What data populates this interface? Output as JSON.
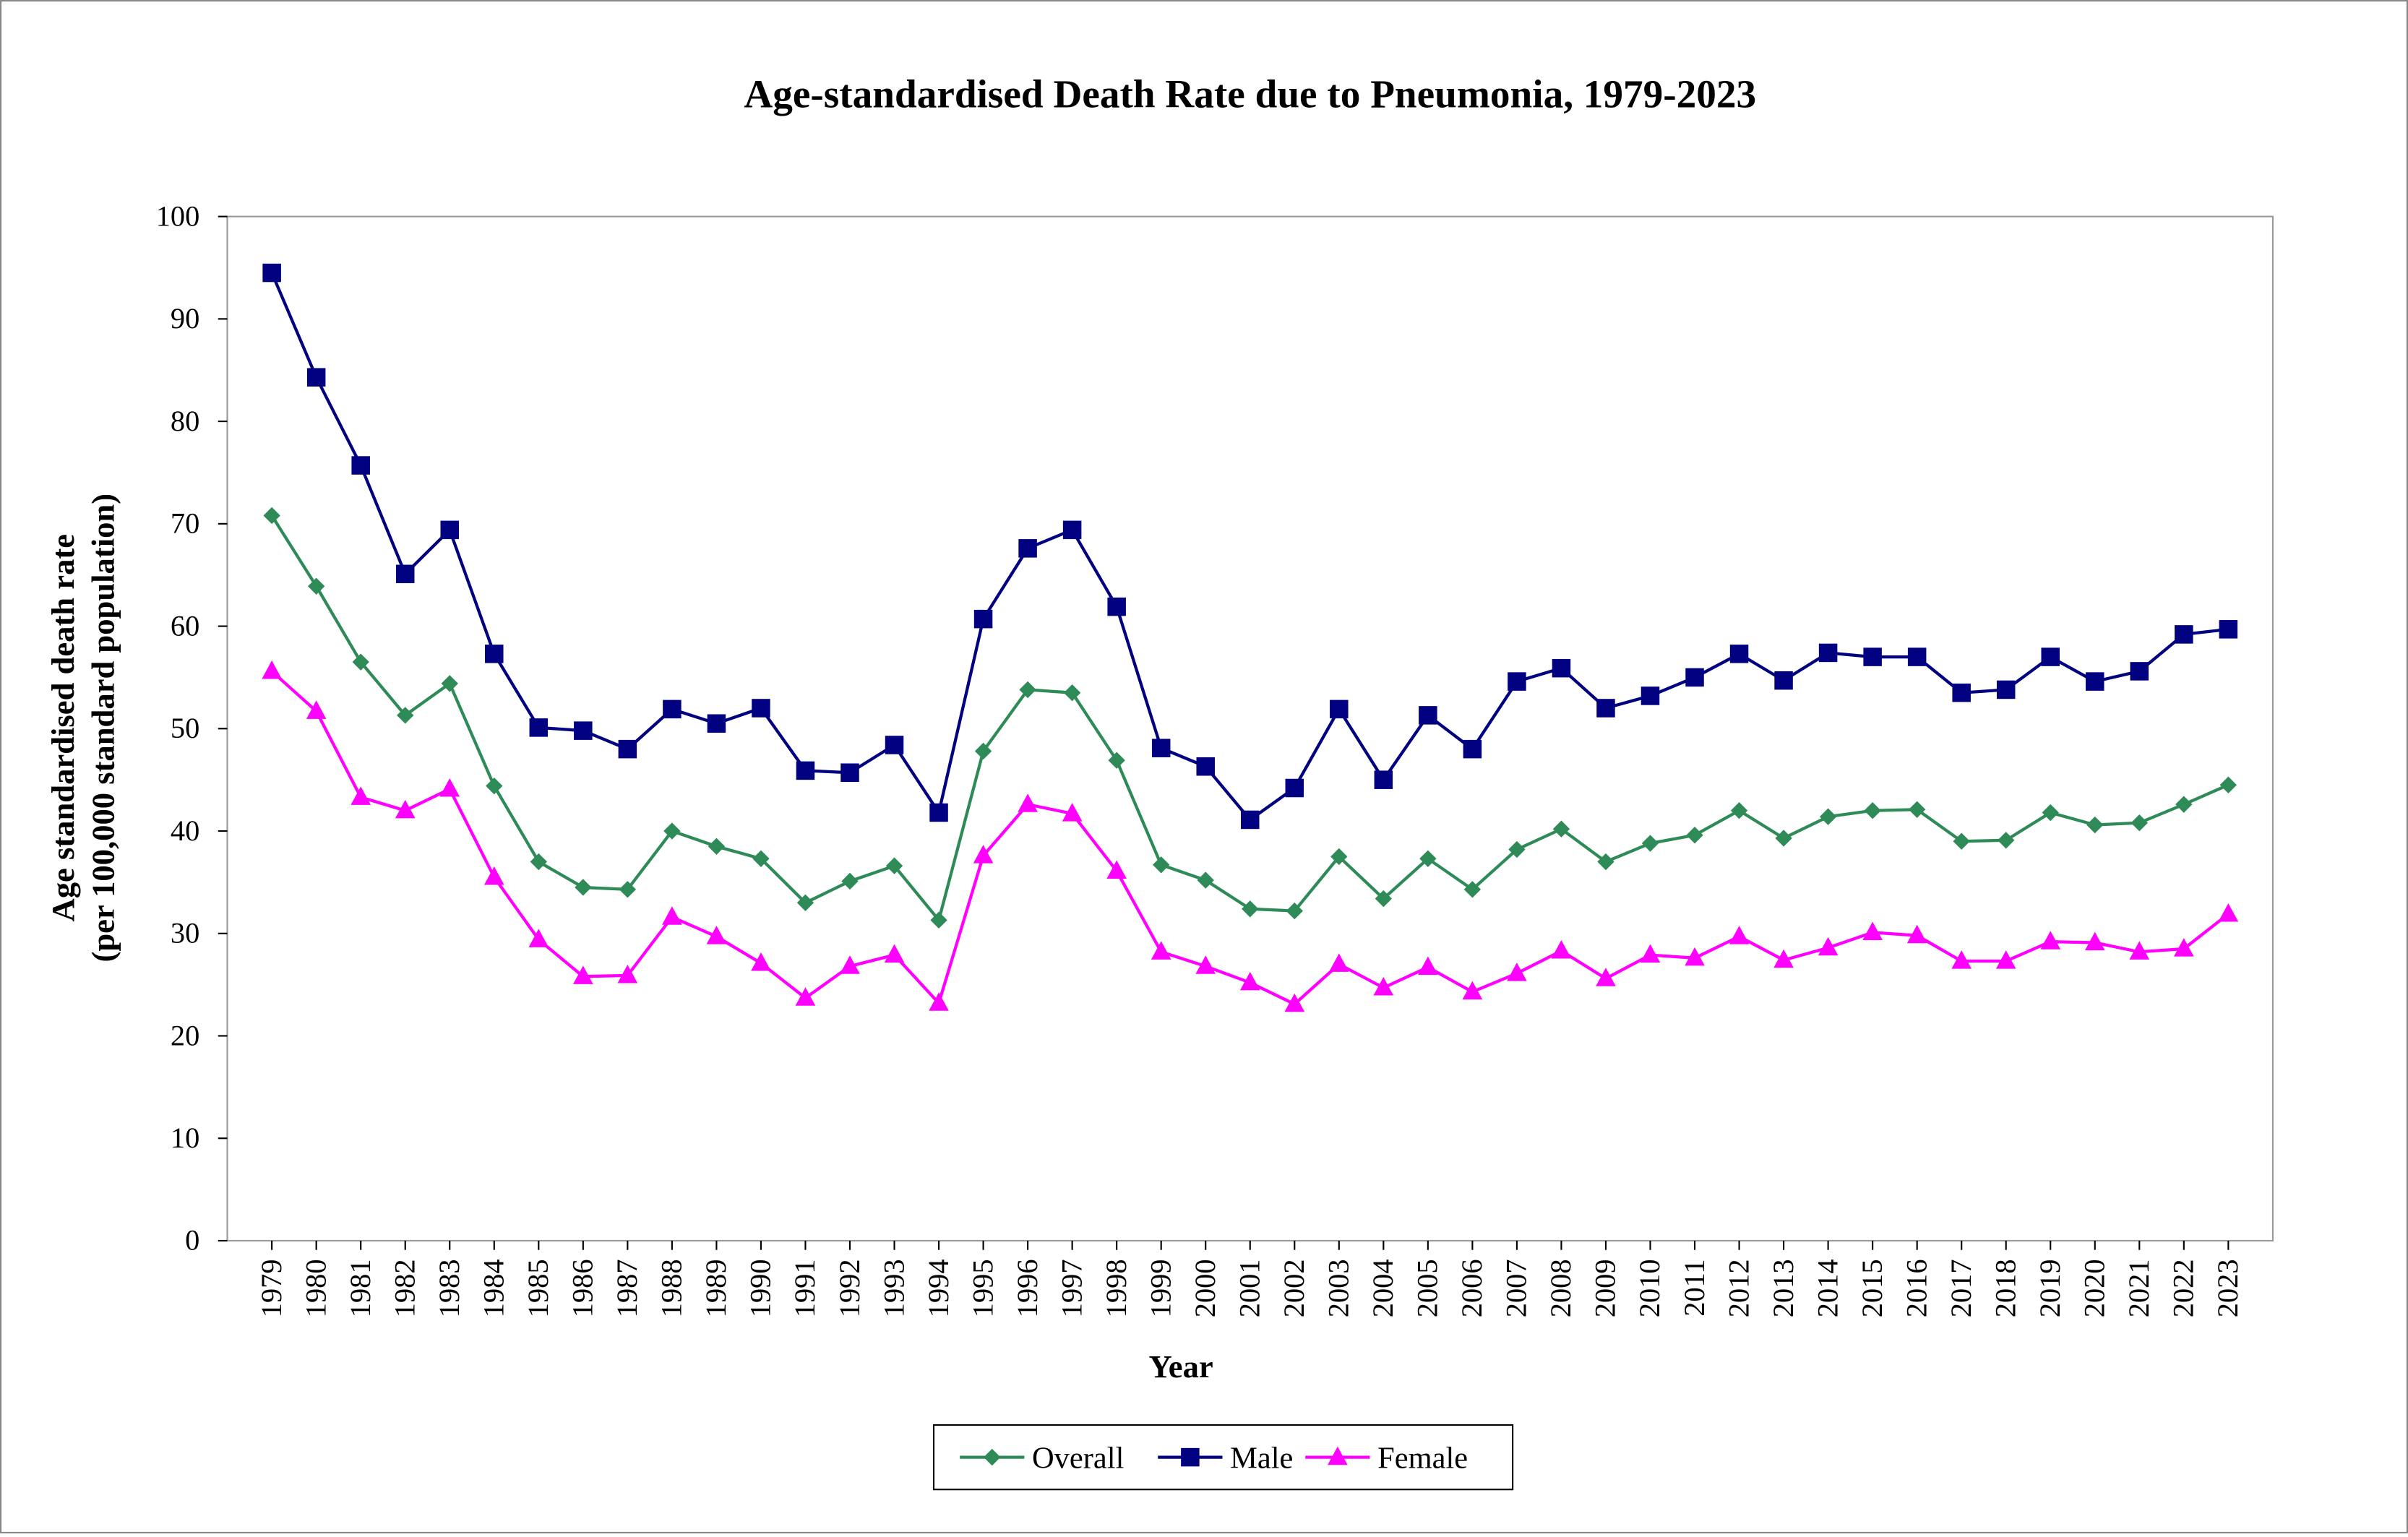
{
  "chart_data": {
    "type": "line",
    "title": "Age-standardised Death Rate due to Pneumonia, 1979-2023",
    "xlabel": "Year",
    "ylabel": [
      "Age standardised death rate",
      "(per 100,000 standard population)"
    ],
    "ylim": [
      0,
      100
    ],
    "yticks": [
      0,
      10,
      20,
      30,
      40,
      50,
      60,
      70,
      80,
      90,
      100
    ],
    "grid": false,
    "legend_position": "bottom",
    "x": [
      "1979",
      "1980",
      "1981",
      "1982",
      "1983",
      "1984",
      "1985",
      "1986",
      "1987",
      "1988",
      "1989",
      "1990",
      "1991",
      "1992",
      "1993",
      "1994",
      "1995",
      "1996",
      "1997",
      "1998",
      "1999",
      "2000",
      "2001",
      "2002",
      "2003",
      "2004",
      "2005",
      "2006",
      "2007",
      "2008",
      "2009",
      "2010",
      "2011",
      "2012",
      "2013",
      "2014",
      "2015",
      "2016",
      "2017",
      "2018",
      "2019",
      "2020",
      "2021",
      "2022",
      "2023"
    ],
    "series": [
      {
        "name": "Overall",
        "color": "#2E8B57",
        "marker": "diamond",
        "values": [
          70.8,
          63.9,
          56.5,
          51.3,
          54.4,
          44.4,
          37.0,
          34.5,
          34.3,
          40.0,
          38.5,
          37.3,
          33.0,
          35.1,
          36.6,
          31.3,
          47.8,
          53.8,
          53.5,
          46.9,
          36.7,
          35.2,
          32.4,
          32.2,
          37.5,
          33.4,
          37.3,
          34.3,
          38.2,
          40.2,
          37.0,
          38.8,
          39.6,
          42.0,
          39.3,
          41.4,
          42.0,
          42.1,
          39.0,
          39.1,
          41.8,
          40.6,
          40.8,
          42.6,
          44.5
        ]
      },
      {
        "name": "Male",
        "color": "#000080",
        "marker": "square",
        "values": [
          94.5,
          84.3,
          75.7,
          65.1,
          69.4,
          57.3,
          50.1,
          49.8,
          48.0,
          51.9,
          50.5,
          52.0,
          45.9,
          45.7,
          48.4,
          41.8,
          60.7,
          67.6,
          69.4,
          61.9,
          48.1,
          46.3,
          41.1,
          44.2,
          51.9,
          45.0,
          51.3,
          48.0,
          54.6,
          55.9,
          52.0,
          53.2,
          55.0,
          57.3,
          54.7,
          57.4,
          57.0,
          57.0,
          53.5,
          53.8,
          57.0,
          54.6,
          55.6,
          59.2,
          59.7
        ]
      },
      {
        "name": "Female",
        "color": "#FF00FF",
        "marker": "triangle",
        "values": [
          55.6,
          51.7,
          43.3,
          42.0,
          44.1,
          35.5,
          29.4,
          25.8,
          25.9,
          31.6,
          29.7,
          27.1,
          23.7,
          26.8,
          27.9,
          23.2,
          37.6,
          42.6,
          41.7,
          36.1,
          28.2,
          26.8,
          25.2,
          23.1,
          27.0,
          24.7,
          26.7,
          24.3,
          26.1,
          28.3,
          25.6,
          27.9,
          27.6,
          29.7,
          27.4,
          28.6,
          30.1,
          29.8,
          27.3,
          27.3,
          29.2,
          29.1,
          28.2,
          28.5,
          31.9
        ]
      }
    ]
  }
}
